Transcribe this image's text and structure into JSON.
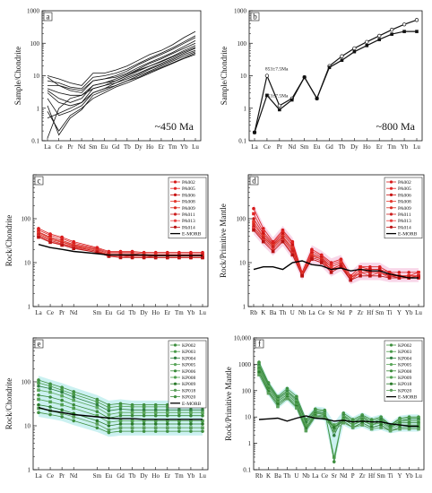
{
  "chart_data": [
    {
      "panel": "a",
      "type": "line",
      "annotation": "~450 Ma",
      "ylabel": "Sample/Chondrite",
      "yscale": "log",
      "ylim": [
        0.1,
        1000
      ],
      "yticks": [
        "0.1",
        "1",
        "10",
        "100",
        "1000"
      ],
      "categories": [
        "La",
        "Ce",
        "Pr",
        "Nd",
        "Sm",
        "Eu",
        "Gd",
        "Tb",
        "Dy",
        "Ho",
        "Er",
        "Tm",
        "Yb",
        "Lu"
      ],
      "series": [
        {
          "values": [
            10,
            8,
            6,
            5,
            12,
            12,
            15,
            20,
            30,
            45,
            60,
            90,
            150,
            230
          ]
        },
        {
          "values": [
            9,
            5,
            3.5,
            3,
            7,
            8,
            10,
            14,
            22,
            32,
            45,
            65,
            100,
            150
          ]
        },
        {
          "values": [
            4,
            3,
            2.5,
            2.5,
            5,
            6,
            8,
            11,
            16,
            24,
            33,
            48,
            70,
            100
          ]
        },
        {
          "values": [
            3,
            1.5,
            1.2,
            1.5,
            4,
            5,
            7,
            10,
            15,
            20,
            28,
            40,
            60,
            85
          ]
        },
        {
          "values": [
            2,
            0.6,
            0.8,
            1.2,
            3,
            4,
            6,
            9,
            12,
            17,
            24,
            34,
            50,
            70
          ]
        },
        {
          "values": [
            1.2,
            0.15,
            0.5,
            0.9,
            2.5,
            3.5,
            5,
            7,
            10,
            14,
            20,
            28,
            40,
            55
          ]
        },
        {
          "values": [
            0.8,
            0.2,
            0.6,
            1,
            2,
            3,
            4.5,
            6,
            8.5,
            12,
            17,
            24,
            34,
            45
          ]
        },
        {
          "values": [
            0.5,
            0.7,
            1,
            1.5,
            3,
            4,
            5,
            7,
            9,
            13,
            18,
            25,
            35,
            50
          ]
        },
        {
          "values": [
            0.12,
            1,
            2,
            2.5,
            4,
            5,
            6,
            8,
            11,
            16,
            22,
            31,
            45,
            60
          ]
        },
        {
          "values": [
            5,
            5,
            4,
            3.5,
            7,
            8,
            9,
            12,
            18,
            26,
            36,
            52,
            80,
            120
          ]
        },
        {
          "values": [
            7,
            6,
            4.5,
            4,
            9,
            10,
            12,
            16,
            24,
            35,
            50,
            72,
            110,
            170
          ]
        },
        {
          "values": [
            3.5,
            2,
            1.5,
            2,
            5,
            6,
            7,
            10,
            14,
            20,
            27,
            38,
            55,
            75
          ]
        }
      ]
    },
    {
      "panel": "b",
      "type": "line",
      "annotation": "~800 Ma",
      "ylabel": "Sample/Chondrite",
      "yscale": "log",
      "ylim": [
        0.1,
        1000
      ],
      "yticks": [
        "0.1",
        "1",
        "10",
        "100",
        "1000"
      ],
      "categories": [
        "La",
        "Ce",
        "Pr",
        "Nd",
        "Sm",
        "Eu",
        "Gd",
        "Tb",
        "Dy",
        "Ho",
        "Er",
        "Tm",
        "Yb",
        "Lu"
      ],
      "labels": [
        "853±7.5Ma",
        "853±7.5Ma"
      ],
      "series": [
        {
          "values": [
            0.18,
            10,
            1.2,
            2,
            9,
            2,
            20,
            40,
            70,
            110,
            170,
            260,
            380,
            520
          ]
        },
        {
          "values": [
            0.18,
            2.5,
            0.9,
            1.8,
            9,
            2,
            18,
            30,
            55,
            85,
            130,
            190,
            230,
            230
          ]
        }
      ]
    },
    {
      "panel": "c",
      "type": "line",
      "ylabel": "Rock/Chondrite",
      "yscale": "log",
      "ylim": [
        1,
        1000
      ],
      "yticks": [
        "1",
        "10",
        "100"
      ],
      "categories": [
        "La",
        "Ce",
        "Pr",
        "Nd",
        "",
        "Sm",
        "Eu",
        "Gd",
        "Tb",
        "Dy",
        "Ho",
        "Er",
        "Tm",
        "Yb",
        "Lu"
      ],
      "series": [
        {
          "name": "PA002",
          "values": [
            60,
            45,
            38,
            30,
            null,
            22,
            18,
            18,
            18,
            17,
            17,
            17,
            17,
            17,
            17
          ]
        },
        {
          "name": "PA005",
          "values": [
            55,
            42,
            35,
            28,
            null,
            21,
            17,
            17,
            17,
            16,
            16,
            16,
            16,
            16,
            16
          ]
        },
        {
          "name": "PA006",
          "values": [
            50,
            38,
            32,
            26,
            null,
            20,
            16,
            16,
            16,
            15,
            15,
            15,
            15,
            15,
            15
          ]
        },
        {
          "name": "PA008",
          "values": [
            48,
            36,
            30,
            25,
            null,
            19,
            15,
            15,
            15,
            15,
            15,
            14,
            14,
            14,
            14
          ]
        },
        {
          "name": "PA009",
          "values": [
            45,
            34,
            29,
            24,
            null,
            18,
            15,
            15,
            14,
            14,
            14,
            14,
            14,
            14,
            14
          ]
        },
        {
          "name": "PA011",
          "values": [
            42,
            32,
            27,
            23,
            null,
            18,
            14,
            14,
            14,
            14,
            13,
            13,
            13,
            13,
            13
          ]
        },
        {
          "name": "PA013",
          "values": [
            40,
            30,
            26,
            22,
            null,
            17,
            14,
            14,
            13,
            13,
            13,
            13,
            13,
            13,
            13
          ]
        },
        {
          "name": "PA014",
          "values": [
            38,
            29,
            25,
            21,
            null,
            17,
            14,
            13,
            13,
            13,
            13,
            13,
            13,
            13,
            13
          ]
        },
        {
          "name": "E-MORB",
          "values": [
            26,
            22,
            20,
            18,
            null,
            16,
            15,
            15,
            15,
            15,
            14.5,
            14.5,
            14.5,
            14.5,
            14.5
          ]
        }
      ]
    },
    {
      "panel": "d",
      "type": "line",
      "ylabel": "Rock/Primitive Mantle",
      "yscale": "log",
      "ylim": [
        1,
        1000
      ],
      "yticks": [
        "1",
        "10",
        "100"
      ],
      "categories": [
        "Rb",
        "K",
        "Ba",
        "Th",
        "U",
        "Nb",
        "La",
        "Ce",
        "Sr",
        "Nd",
        "P",
        "Zr",
        "Hf",
        "Sm",
        "Ti",
        "Y",
        "Yb",
        "Lu"
      ],
      "series": [
        {
          "name": "PA002",
          "values": [
            170,
            60,
            30,
            55,
            30,
            6,
            20,
            15,
            10,
            12,
            5,
            8,
            8,
            8,
            6,
            6,
            6,
            6
          ]
        },
        {
          "name": "PA005",
          "values": [
            130,
            50,
            28,
            50,
            28,
            6,
            18,
            14,
            9,
            11,
            5,
            8,
            7,
            7,
            6,
            5,
            5,
            6
          ]
        },
        {
          "name": "PA006",
          "values": [
            100,
            45,
            26,
            45,
            25,
            5.5,
            16,
            13,
            8,
            10,
            4.5,
            7,
            7,
            7,
            5,
            5,
            5,
            5
          ]
        },
        {
          "name": "PA008",
          "values": [
            85,
            40,
            25,
            40,
            22,
            5.5,
            15,
            12,
            8,
            10,
            4.5,
            7,
            6,
            6,
            5,
            5,
            5,
            5
          ]
        },
        {
          "name": "PA009",
          "values": [
            75,
            38,
            24,
            38,
            20,
            5,
            14,
            12,
            7,
            9,
            4.5,
            6,
            6,
            6,
            5,
            5,
            5,
            5
          ]
        },
        {
          "name": "PA011",
          "values": [
            65,
            35,
            22,
            35,
            18,
            5,
            13,
            11,
            7,
            9,
            4,
            6,
            6,
            6,
            5,
            4.5,
            4.5,
            5
          ]
        },
        {
          "name": "PA013",
          "values": [
            60,
            32,
            20,
            32,
            16,
            5,
            12,
            10,
            7,
            8,
            4,
            6,
            5,
            6,
            4.5,
            4.5,
            4.5,
            4.5
          ]
        },
        {
          "name": "PA014",
          "values": [
            55,
            30,
            18,
            30,
            15,
            5,
            12,
            10,
            6,
            8,
            4,
            5,
            5,
            5,
            4.5,
            4.5,
            4.5,
            4.5
          ]
        },
        {
          "name": "E-MORB",
          "values": [
            7,
            8,
            8,
            7,
            10,
            11,
            9,
            8.5,
            7,
            7.5,
            6.5,
            7,
            6.5,
            6.5,
            5.5,
            5,
            4.5,
            4.5
          ]
        }
      ]
    },
    {
      "panel": "e",
      "type": "line",
      "ylabel": "Rock/Chondrite",
      "yscale": "log",
      "ylim": [
        1,
        1000
      ],
      "yticks": [
        "1",
        "10",
        "100"
      ],
      "categories": [
        "La",
        "Ce",
        "Pr",
        "Nd",
        "",
        "Sm",
        "Eu",
        "Gd",
        "Tb",
        "Dy",
        "Ho",
        "Er",
        "Tm",
        "Yb",
        "Lu"
      ],
      "series": [
        {
          "name": "KP002",
          "values": [
            110,
            90,
            75,
            60,
            null,
            40,
            30,
            32,
            30,
            30,
            30,
            30,
            30,
            30,
            30
          ]
        },
        {
          "name": "KP003",
          "values": [
            95,
            80,
            65,
            52,
            null,
            35,
            26,
            28,
            27,
            27,
            27,
            27,
            27,
            27,
            27
          ]
        },
        {
          "name": "KP004",
          "values": [
            80,
            70,
            58,
            45,
            null,
            30,
            22,
            24,
            23,
            23,
            23,
            23,
            23,
            23,
            23
          ]
        },
        {
          "name": "KP005",
          "values": [
            65,
            58,
            48,
            38,
            null,
            26,
            18,
            20,
            20,
            20,
            20,
            20,
            20,
            20,
            20
          ]
        },
        {
          "name": "KP006",
          "values": [
            50,
            45,
            38,
            30,
            null,
            21,
            15,
            17,
            17,
            17,
            17,
            17,
            17,
            17,
            17
          ]
        },
        {
          "name": "KP008",
          "values": [
            40,
            35,
            30,
            25,
            null,
            17,
            12,
            13,
            13,
            13,
            13,
            13,
            13,
            13,
            13
          ]
        },
        {
          "name": "KP009",
          "values": [
            30,
            27,
            23,
            19,
            null,
            13,
            10,
            11,
            11,
            11,
            11,
            11,
            11,
            11,
            11
          ]
        },
        {
          "name": "KP018",
          "values": [
            25,
            22,
            19,
            16,
            null,
            11,
            8,
            9,
            9,
            9,
            9,
            9,
            9,
            9,
            9
          ]
        },
        {
          "name": "KP020",
          "values": [
            20,
            18,
            16,
            13,
            null,
            9,
            7,
            7.5,
            7.5,
            7.5,
            7.5,
            7.5,
            7.5,
            7.5,
            7.5
          ]
        },
        {
          "name": "E-MORB",
          "values": [
            26,
            22,
            20,
            18,
            null,
            16,
            15,
            14.5,
            14.5,
            14,
            14,
            14,
            14,
            14,
            14
          ]
        }
      ]
    },
    {
      "panel": "f",
      "type": "line",
      "ylabel": "Rock/Primitive Mantle",
      "yscale": "log",
      "ylim": [
        0.1,
        10000
      ],
      "yticks": [
        "0.1",
        "1",
        "10",
        "100",
        "1000",
        "10,000"
      ],
      "categories": [
        "Rb",
        "K",
        "Ba",
        "Th",
        "U",
        "Nb",
        "La",
        "Ce",
        "Sr",
        "Nd",
        "P",
        "Zr",
        "Hf",
        "Sm",
        "Ti",
        "Y",
        "Yb",
        "Lu"
      ],
      "series": [
        {
          "name": "KP002",
          "values": [
            1200,
            200,
            60,
            120,
            60,
            8,
            20,
            18,
            0.2,
            14,
            8,
            12,
            8,
            10,
            5,
            9,
            10,
            10
          ]
        },
        {
          "name": "KP003",
          "values": [
            1000,
            180,
            55,
            100,
            50,
            7,
            18,
            16,
            0.3,
            12,
            7,
            11,
            7,
            9,
            5,
            8,
            9,
            9
          ]
        },
        {
          "name": "KP004",
          "values": [
            900,
            160,
            50,
            90,
            45,
            6,
            16,
            14,
            2,
            11,
            6,
            10,
            6,
            8,
            4.5,
            7,
            8,
            8
          ]
        },
        {
          "name": "KP005",
          "values": [
            800,
            140,
            45,
            80,
            40,
            5,
            15,
            13,
            3,
            10,
            6,
            9,
            6,
            7,
            4,
            7,
            7,
            7
          ]
        },
        {
          "name": "KP008",
          "values": [
            700,
            120,
            40,
            70,
            35,
            4,
            14,
            12,
            4,
            9,
            5,
            8,
            5,
            7,
            4,
            6,
            6,
            6
          ]
        },
        {
          "name": "KP009",
          "values": [
            600,
            100,
            35,
            60,
            30,
            4,
            12,
            11,
            5,
            8,
            5,
            7,
            5,
            6,
            3.5,
            5,
            5,
            5
          ]
        },
        {
          "name": "KP018",
          "values": [
            500,
            90,
            30,
            55,
            25,
            3.5,
            11,
            10,
            4,
            7,
            4,
            6,
            4,
            5,
            3,
            4,
            4,
            4
          ]
        },
        {
          "name": "KP020",
          "values": [
            400,
            80,
            25,
            50,
            22,
            3,
            10,
            9,
            3,
            6,
            4,
            5,
            3.5,
            4,
            3,
            3.5,
            3.5,
            3.5
          ]
        },
        {
          "name": "E-MORB",
          "values": [
            8,
            8.5,
            9,
            7,
            9,
            11,
            9,
            8.5,
            7,
            7.5,
            6.5,
            7,
            6.5,
            6.5,
            5.5,
            5,
            4.5,
            4.5
          ]
        }
      ]
    }
  ]
}
